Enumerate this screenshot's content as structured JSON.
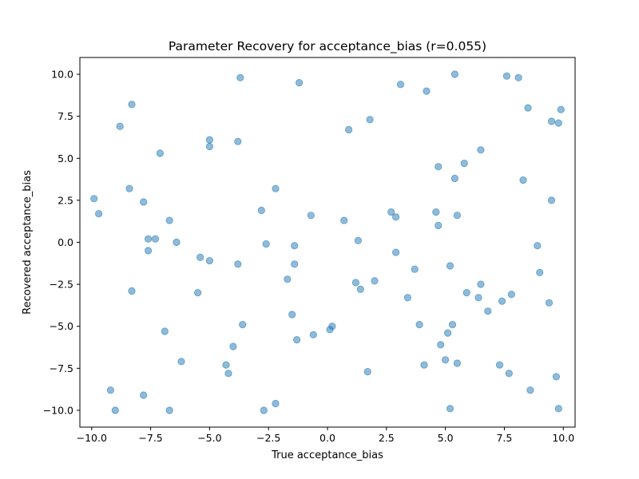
{
  "chart_data": {
    "type": "scatter",
    "title": "Parameter Recovery for acceptance_bias (r=0.055)",
    "xlabel": "True acceptance_bias",
    "ylabel": "Recovered acceptance_bias",
    "xlim": [
      -10.5,
      10.5
    ],
    "ylim": [
      -11.0,
      11.0
    ],
    "xticks": [
      -10.0,
      -7.5,
      -5.0,
      -2.5,
      0.0,
      2.5,
      5.0,
      7.5,
      10.0
    ],
    "yticks": [
      -10.0,
      -7.5,
      -5.0,
      -2.5,
      0.0,
      2.5,
      5.0,
      7.5,
      10.0
    ],
    "xtick_labels": [
      "−10.0",
      "−7.5",
      "−5.0",
      "−2.5",
      "0.0",
      "2.5",
      "5.0",
      "7.5",
      "10.0"
    ],
    "ytick_labels": [
      "−10.0",
      "−7.5",
      "−5.0",
      "−2.5",
      "0.0",
      "2.5",
      "5.0",
      "7.5",
      "10.0"
    ],
    "grid": false,
    "marker_color": "#1f77b4",
    "points": [
      [
        -9.9,
        2.6
      ],
      [
        -9.7,
        1.7
      ],
      [
        -9.2,
        -8.8
      ],
      [
        -9.0,
        -10.0
      ],
      [
        -8.8,
        6.9
      ],
      [
        -8.4,
        3.2
      ],
      [
        -8.3,
        8.2
      ],
      [
        -8.3,
        -2.9
      ],
      [
        -7.8,
        2.4
      ],
      [
        -7.8,
        -9.1
      ],
      [
        -7.6,
        0.2
      ],
      [
        -7.6,
        -0.5
      ],
      [
        -7.3,
        0.2
      ],
      [
        -7.1,
        5.3
      ],
      [
        -6.9,
        -5.3
      ],
      [
        -6.7,
        1.3
      ],
      [
        -6.7,
        -10.0
      ],
      [
        -6.4,
        0.0
      ],
      [
        -6.2,
        -7.1
      ],
      [
        -5.5,
        -3.0
      ],
      [
        -5.4,
        -0.9
      ],
      [
        -5.0,
        6.1
      ],
      [
        -5.0,
        5.7
      ],
      [
        -5.0,
        -1.1
      ],
      [
        -4.3,
        -7.3
      ],
      [
        -4.2,
        -7.8
      ],
      [
        -4.0,
        -6.2
      ],
      [
        -3.8,
        6.0
      ],
      [
        -3.8,
        -1.3
      ],
      [
        -3.7,
        9.8
      ],
      [
        -3.6,
        -4.9
      ],
      [
        -2.8,
        1.9
      ],
      [
        -2.7,
        -10.0
      ],
      [
        -2.6,
        -0.1
      ],
      [
        -2.2,
        3.2
      ],
      [
        -2.2,
        -9.6
      ],
      [
        -1.7,
        -2.2
      ],
      [
        -1.5,
        -4.3
      ],
      [
        -1.4,
        -0.2
      ],
      [
        -1.4,
        -1.3
      ],
      [
        -1.3,
        -5.8
      ],
      [
        -1.2,
        9.5
      ],
      [
        -0.7,
        1.6
      ],
      [
        -0.6,
        -5.5
      ],
      [
        0.1,
        -5.2
      ],
      [
        0.2,
        -5.0
      ],
      [
        0.7,
        1.3
      ],
      [
        0.9,
        6.7
      ],
      [
        1.2,
        -2.4
      ],
      [
        1.3,
        0.1
      ],
      [
        1.4,
        -2.8
      ],
      [
        1.7,
        -7.7
      ],
      [
        1.8,
        7.3
      ],
      [
        2.0,
        -2.3
      ],
      [
        2.7,
        1.8
      ],
      [
        2.9,
        1.5
      ],
      [
        2.9,
        -0.6
      ],
      [
        3.1,
        9.4
      ],
      [
        3.4,
        -3.3
      ],
      [
        3.7,
        -1.6
      ],
      [
        3.9,
        -4.9
      ],
      [
        4.1,
        -7.3
      ],
      [
        4.2,
        9.0
      ],
      [
        4.6,
        1.8
      ],
      [
        4.7,
        1.0
      ],
      [
        4.7,
        4.5
      ],
      [
        4.8,
        -6.1
      ],
      [
        5.0,
        -7.0
      ],
      [
        5.1,
        -5.4
      ],
      [
        5.2,
        -1.4
      ],
      [
        5.2,
        -9.9
      ],
      [
        5.3,
        -4.9
      ],
      [
        5.4,
        3.8
      ],
      [
        5.4,
        10.0
      ],
      [
        5.5,
        -7.2
      ],
      [
        5.5,
        1.6
      ],
      [
        5.8,
        4.7
      ],
      [
        5.9,
        -3.0
      ],
      [
        6.4,
        -3.3
      ],
      [
        6.5,
        5.5
      ],
      [
        6.5,
        -2.5
      ],
      [
        6.8,
        -4.1
      ],
      [
        7.3,
        -7.3
      ],
      [
        7.4,
        -3.5
      ],
      [
        7.6,
        9.9
      ],
      [
        7.7,
        -7.8
      ],
      [
        7.8,
        -3.1
      ],
      [
        8.1,
        9.8
      ],
      [
        8.3,
        3.7
      ],
      [
        8.5,
        8.0
      ],
      [
        8.6,
        -8.8
      ],
      [
        8.9,
        -0.2
      ],
      [
        9.0,
        -1.8
      ],
      [
        9.4,
        -3.6
      ],
      [
        9.5,
        7.2
      ],
      [
        9.5,
        2.5
      ],
      [
        9.7,
        -8.0
      ],
      [
        9.8,
        7.1
      ],
      [
        9.8,
        -9.9
      ],
      [
        9.9,
        7.9
      ]
    ]
  }
}
